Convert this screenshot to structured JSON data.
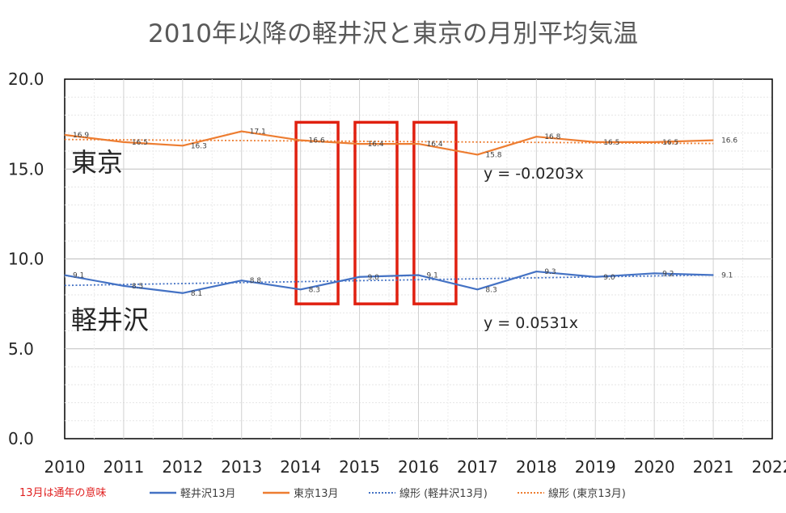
{
  "chart_data": {
    "type": "line",
    "title": "2010年以降の軽井沢と東京の月別平均気温",
    "x": [
      2010,
      2011,
      2012,
      2013,
      2014,
      2015,
      2016,
      2017,
      2018,
      2019,
      2020,
      2021
    ],
    "xlim": [
      2010,
      2022
    ],
    "xticks": [
      "2010",
      "2011",
      "2012",
      "2013",
      "2014",
      "2015",
      "2016",
      "2017",
      "2018",
      "2019",
      "2020",
      "2021",
      "2022"
    ],
    "ylim": [
      0,
      20
    ],
    "yticks": [
      "0.0",
      "5.0",
      "10.0",
      "15.0",
      "20.0"
    ],
    "grid": true,
    "series": [
      {
        "name": "軽井沢13月",
        "color": "#4472c4",
        "values": [
          9.1,
          8.5,
          8.1,
          8.8,
          8.3,
          9.0,
          9.1,
          8.3,
          9.3,
          9.0,
          9.2,
          9.1
        ],
        "labels": [
          "9.1",
          "8.5",
          "8.1",
          "8.8",
          "8.3",
          "9.0",
          "9.1",
          "8.3",
          "9.3",
          "9.0",
          "9.2",
          "9.1"
        ]
      },
      {
        "name": "東京13月",
        "color": "#ed7d31",
        "values": [
          16.9,
          16.5,
          16.3,
          17.1,
          16.6,
          16.4,
          16.4,
          15.8,
          16.8,
          16.5,
          16.5,
          16.6
        ],
        "labels": [
          "16.9",
          "16.5",
          "16.3",
          "17.1",
          "16.6",
          "16.4",
          "16.4",
          "15.8",
          "16.8",
          "16.5",
          "16.5",
          "16.6"
        ]
      }
    ],
    "trendlines": [
      {
        "name": "線形 (軽井沢13月)",
        "color": "#4472c4",
        "slope": 0.0531,
        "equation": "y = 0.0531x"
      },
      {
        "name": "線形 (東京13月)",
        "color": "#ed7d31",
        "slope": -0.0203,
        "equation": "y = -0.0203x"
      }
    ],
    "annotations": {
      "tokyo_label": "東京",
      "karuizawa_label": "軽井沢",
      "note": "13月は通年の意味",
      "highlight_years": [
        2014,
        2015,
        2016
      ],
      "highlight_color": "#e02010"
    },
    "legend_position": "bottom"
  }
}
